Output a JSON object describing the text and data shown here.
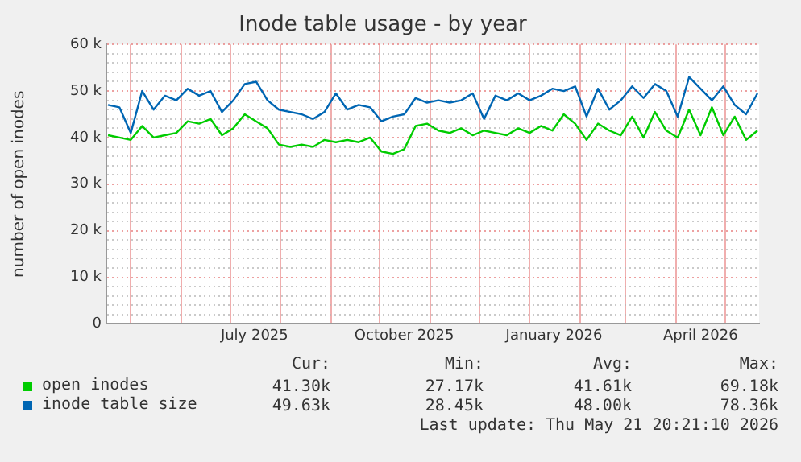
{
  "chart_data": {
    "type": "line",
    "title": "Inode table usage - by year",
    "ylabel": "number of open inodes",
    "x": [
      "2025-04-17",
      "2025-04-24",
      "2025-05-01",
      "2025-05-08",
      "2025-05-15",
      "2025-05-22",
      "2025-05-29",
      "2025-06-05",
      "2025-06-12",
      "2025-06-19",
      "2025-06-26",
      "2025-07-03",
      "2025-07-10",
      "2025-07-17",
      "2025-07-24",
      "2025-07-31",
      "2025-08-07",
      "2025-08-14",
      "2025-08-21",
      "2025-08-28",
      "2025-09-04",
      "2025-09-11",
      "2025-09-18",
      "2025-09-25",
      "2025-10-02",
      "2025-10-09",
      "2025-10-16",
      "2025-10-23",
      "2025-10-30",
      "2025-11-06",
      "2025-11-13",
      "2025-11-20",
      "2025-11-27",
      "2025-12-04",
      "2025-12-11",
      "2025-12-18",
      "2025-12-25",
      "2026-01-01",
      "2026-01-08",
      "2026-01-15",
      "2026-01-22",
      "2026-01-29",
      "2026-02-05",
      "2026-02-12",
      "2026-02-19",
      "2026-02-26",
      "2026-03-05",
      "2026-03-12",
      "2026-03-19",
      "2026-03-26",
      "2026-04-02",
      "2026-04-09",
      "2026-04-16",
      "2026-04-23",
      "2026-04-30",
      "2026-05-07",
      "2026-05-14",
      "2026-05-21"
    ],
    "series": [
      {
        "name": "open inodes",
        "color": "#00cc00",
        "values": [
          40500,
          40000,
          39500,
          42500,
          40000,
          40500,
          41000,
          43500,
          43000,
          44000,
          40500,
          42000,
          45000,
          43500,
          42000,
          38500,
          38000,
          38500,
          38000,
          39500,
          39000,
          39500,
          39000,
          40000,
          37000,
          36500,
          37500,
          42500,
          43000,
          41500,
          41000,
          42000,
          40500,
          41500,
          41000,
          40500,
          42000,
          41000,
          42500,
          41500,
          45000,
          43000,
          39500,
          43000,
          41500,
          40500,
          44500,
          40000,
          45500,
          41500,
          40000,
          46000,
          40500,
          46500,
          40500,
          44500,
          39500,
          41500
        ]
      },
      {
        "name": "inode table size",
        "color": "#0066b3",
        "values": [
          47000,
          46500,
          41000,
          50000,
          46000,
          49000,
          48000,
          50500,
          49000,
          50000,
          45500,
          48000,
          51500,
          52000,
          48000,
          46000,
          45500,
          45000,
          44000,
          45500,
          49500,
          46000,
          47000,
          46500,
          43500,
          44500,
          45000,
          48500,
          47500,
          48000,
          47500,
          48000,
          49500,
          44000,
          49000,
          48000,
          49500,
          48000,
          49000,
          50500,
          50000,
          51000,
          44500,
          50500,
          46000,
          48000,
          51000,
          48500,
          51500,
          50000,
          44500,
          53000,
          50500,
          48000,
          51000,
          47000,
          45000,
          49500
        ]
      }
    ],
    "xlim": [
      "2025-04-16",
      "2026-05-22"
    ],
    "xticks": [
      {
        "value": "2025-05-01",
        "label": null
      },
      {
        "value": "2025-06-01",
        "label": null
      },
      {
        "value": "2025-07-01",
        "label": null
      },
      {
        "value": "2025-07-16",
        "label": "July 2025"
      },
      {
        "value": "2025-08-01",
        "label": null
      },
      {
        "value": "2025-09-01",
        "label": null
      },
      {
        "value": "2025-10-01",
        "label": null
      },
      {
        "value": "2025-10-16",
        "label": "October 2025"
      },
      {
        "value": "2025-11-01",
        "label": null
      },
      {
        "value": "2025-12-01",
        "label": null
      },
      {
        "value": "2026-01-01",
        "label": null
      },
      {
        "value": "2026-01-16",
        "label": "January 2026"
      },
      {
        "value": "2026-02-01",
        "label": null
      },
      {
        "value": "2026-03-01",
        "label": null
      },
      {
        "value": "2026-04-01",
        "label": null
      },
      {
        "value": "2026-04-16",
        "label": "April 2026"
      },
      {
        "value": "2026-05-01",
        "label": null
      }
    ],
    "ylim": [
      0,
      60000
    ],
    "yticks": [
      0,
      {
        "value": 2000,
        "label": null
      },
      {
        "value": 4000,
        "label": null
      },
      {
        "value": 6000,
        "label": null
      },
      {
        "value": 8000,
        "label": null
      },
      {
        "value": 10000,
        "label": "10 k"
      },
      {
        "value": 12000,
        "label": null
      },
      {
        "value": 14000,
        "label": null
      },
      {
        "value": 16000,
        "label": null
      },
      {
        "value": 18000,
        "label": null
      },
      {
        "value": 20000,
        "label": "20 k"
      },
      {
        "value": 22000,
        "label": null
      },
      {
        "value": 24000,
        "label": null
      },
      {
        "value": 26000,
        "label": null
      },
      {
        "value": 28000,
        "label": null
      },
      {
        "value": 30000,
        "label": "30 k"
      },
      {
        "value": 32000,
        "label": null
      },
      {
        "value": 34000,
        "label": null
      },
      {
        "value": 36000,
        "label": null
      },
      {
        "value": 38000,
        "label": null
      },
      {
        "value": 40000,
        "label": "40 k"
      },
      {
        "value": 42000,
        "label": null
      },
      {
        "value": 44000,
        "label": null
      },
      {
        "value": 46000,
        "label": null
      },
      {
        "value": 48000,
        "label": null
      },
      {
        "value": 50000,
        "label": "50 k"
      },
      {
        "value": 52000,
        "label": null
      },
      {
        "value": 54000,
        "label": null
      },
      {
        "value": 56000,
        "label": null
      },
      {
        "value": 58000,
        "label": null
      },
      {
        "value": 60000,
        "label": "60 k"
      }
    ],
    "grid": true,
    "legend": "bottom",
    "marker": "none",
    "line_style": "solid",
    "annotations": [
      "Cur:",
      "Min:",
      "Avg:",
      "Max:",
      "41.30k",
      "27.17k",
      "41.61k",
      "69.18k",
      "49.63k",
      "28.45k",
      "48.00k",
      "78.36k",
      "Last update: Thu May 21 20:21:10 2026"
    ]
  }
}
